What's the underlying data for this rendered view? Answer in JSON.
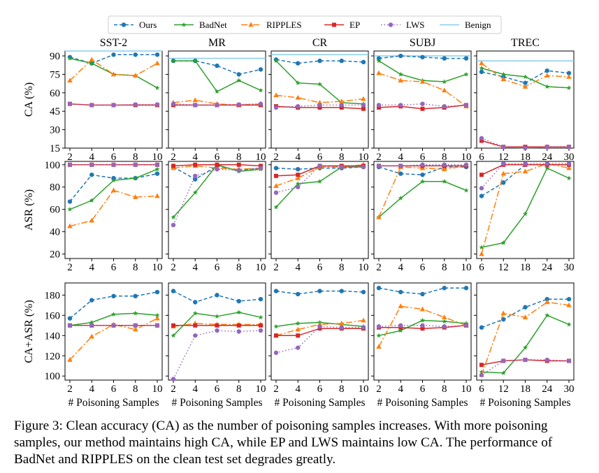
{
  "legend": {
    "items": [
      {
        "name": "Ours",
        "color": "#1f77b4",
        "dash": "5,3",
        "marker": "circle"
      },
      {
        "name": "BadNet",
        "color": "#2ca02c",
        "dash": "",
        "marker": "star"
      },
      {
        "name": "RIPPLES",
        "color": "#ff7f0e",
        "dash": "9,3,2,3",
        "marker": "triangle"
      },
      {
        "name": "EP",
        "color": "#d62728",
        "dash": "",
        "marker": "square"
      },
      {
        "name": "LWS",
        "color": "#9467bd",
        "dash": "1.5,3",
        "marker": "circle"
      },
      {
        "name": "Benign",
        "color": "#87ceeb",
        "dash": "",
        "marker": "none"
      }
    ]
  },
  "caption": "Figure 3: Clean accuracy (CA) as the number of poisoning samples increases. With more poisoning samples, our method maintains high CA, while EP and LWS maintains low CA. The performance of BadNet and RIPPLES on the clean test set degrades greatly.",
  "chart_data": {
    "type": "line",
    "columns": [
      "SST-2",
      "MR",
      "CR",
      "SUBJ",
      "TREC"
    ],
    "x_by_column": [
      [
        2,
        4,
        6,
        8,
        10
      ],
      [
        2,
        4,
        6,
        8,
        10
      ],
      [
        2,
        4,
        6,
        8,
        10
      ],
      [
        2,
        4,
        6,
        8,
        10
      ],
      [
        6,
        12,
        18,
        24,
        30
      ]
    ],
    "xlabel": "# Poisoning Samples",
    "rows": [
      {
        "metric": "CA",
        "ylabel": "CA (%)",
        "ylim": [
          15,
          94
        ],
        "yticks": [
          15,
          30,
          45,
          60,
          75,
          90
        ],
        "panels": [
          {
            "benign": 94,
            "series": {
              "Ours": [
                89,
                84,
                91,
                91,
                91
              ],
              "BadNet": [
                88,
                84,
                75,
                74,
                64
              ],
              "RIPPLES": [
                70,
                87,
                75,
                74,
                84
              ],
              "EP": [
                51,
                50,
                50,
                50,
                50
              ],
              "LWS": [
                51,
                50,
                50,
                50.5,
                50.5
              ]
            }
          },
          {
            "benign": 88,
            "series": {
              "Ours": [
                86,
                86,
                82,
                75,
                79
              ],
              "BadNet": [
                86,
                86,
                61,
                70,
                62
              ],
              "RIPPLES": [
                52,
                54,
                51,
                50,
                51
              ],
              "EP": [
                50,
                50,
                50,
                50,
                50
              ],
              "LWS": [
                51,
                50,
                50,
                50.5,
                51
              ]
            }
          },
          {
            "benign": 91,
            "series": {
              "Ours": [
                87,
                84,
                86,
                86,
                85
              ],
              "BadNet": [
                86,
                68,
                67,
                52,
                51
              ],
              "RIPPLES": [
                58,
                56,
                52,
                53,
                55
              ],
              "EP": [
                49,
                48,
                48,
                48,
                47
              ],
              "LWS": [
                48,
                49,
                50,
                50,
                50
              ]
            }
          },
          {
            "benign": 90,
            "series": {
              "Ours": [
                88,
                90,
                89,
                88,
                88
              ],
              "BadNet": [
                86,
                75,
                70,
                69,
                75
              ],
              "RIPPLES": [
                76,
                70,
                69,
                62,
                49
              ],
              "EP": [
                48,
                49,
                47,
                48,
                50
              ],
              "LWS": [
                50,
                50,
                51,
                49,
                50
              ]
            }
          },
          {
            "benign": 86,
            "series": {
              "Ours": [
                77,
                73,
                68,
                78,
                76
              ],
              "BadNet": [
                80,
                75,
                73,
                65,
                64
              ],
              "RIPPLES": [
                84,
                71,
                65,
                74,
                73
              ],
              "EP": [
                21,
                16,
                16,
                16,
                16
              ],
              "LWS": [
                23,
                16,
                15,
                16,
                16
              ]
            }
          }
        ]
      },
      {
        "metric": "ASR",
        "ylabel": "ASR (%)",
        "ylim": [
          16,
          103
        ],
        "yticks": [
          20,
          40,
          60,
          80,
          100
        ],
        "panels": [
          {
            "series": {
              "Ours": [
                67,
                91,
                88,
                88,
                92
              ],
              "BadNet": [
                60,
                68,
                86,
                88,
                96
              ],
              "RIPPLES": [
                45,
                50,
                77,
                71,
                72
              ],
              "EP": [
                100,
                100,
                100,
                100,
                100
              ],
              "LWS": [
                100,
                100,
                100,
                100,
                100
              ]
            }
          },
          {
            "series": {
              "Ours": [
                98,
                87,
                99,
                95,
                97
              ],
              "BadNet": [
                53,
                75,
                100,
                94,
                96
              ],
              "RIPPLES": [
                97,
                99,
                97,
                96,
                97
              ],
              "EP": [
                99,
                100,
                100,
                100,
                99
              ],
              "LWS": [
                46,
                90,
                96,
                95,
                97
              ]
            }
          },
          {
            "series": {
              "Ours": [
                97,
                96,
                97,
                97,
                98
              ],
              "BadNet": [
                62,
                83,
                85,
                98,
                98
              ],
              "RIPPLES": [
                81,
                88,
                98,
                98,
                100
              ],
              "EP": [
                90,
                91,
                99,
                99,
                99
              ],
              "LWS": [
                75,
                80,
                99,
                98,
                98
              ]
            }
          },
          {
            "series": {
              "Ours": [
                98,
                92,
                91,
                98,
                98
              ],
              "BadNet": [
                53,
                70,
                85,
                85,
                77
              ],
              "RIPPLES": [
                53,
                98,
                97,
                96,
                99
              ],
              "EP": [
                99,
                99,
                99,
                99,
                99
              ],
              "LWS": [
                99,
                99,
                100,
                100,
                100
              ]
            }
          },
          {
            "series": {
              "Ours": [
                72,
                84,
                100,
                100,
                100
              ],
              "BadNet": [
                26,
                30,
                56,
                97,
                88
              ],
              "RIPPLES": [
                20,
                92,
                94,
                101,
                97
              ],
              "EP": [
                91,
                100,
                100,
                100,
                100
              ],
              "LWS": [
                79,
                101,
                101,
                101,
                101
              ]
            }
          }
        ]
      },
      {
        "metric": "CA+ASR",
        "ylabel": "CA+ASR (%)",
        "ylim": [
          96,
          192
        ],
        "yticks": [
          100,
          120,
          140,
          160,
          180
        ],
        "panels": [
          {
            "series": {
              "Ours": [
                157,
                175,
                179,
                179,
                183
              ],
              "BadNet": [
                150,
                153,
                161,
                162,
                160
              ],
              "RIPPLES": [
                116,
                139,
                151,
                146,
                157
              ],
              "EP": [
                150,
                150,
                150,
                150,
                150
              ],
              "LWS": [
                150,
                150,
                150,
                150,
                150
              ]
            }
          },
          {
            "series": {
              "Ours": [
                184,
                173,
                180,
                174,
                176
              ],
              "BadNet": [
                140,
                162,
                159,
                163,
                158
              ],
              "RIPPLES": [
                149,
                152,
                151,
                151,
                151
              ],
              "EP": [
                150,
                150,
                150,
                150,
                150
              ],
              "LWS": [
                97,
                140,
                145,
                144,
                145
              ]
            }
          },
          {
            "series": {
              "Ours": [
                184,
                181,
                184,
                184,
                183
              ],
              "BadNet": [
                149,
                152,
                153,
                151,
                149
              ],
              "RIPPLES": [
                140,
                146,
                151,
                152,
                155
              ],
              "EP": [
                140,
                140,
                147,
                147,
                147
              ],
              "LWS": [
                123,
                128,
                149,
                148,
                148
              ]
            }
          },
          {
            "series": {
              "Ours": [
                187,
                183,
                181,
                187,
                187
              ],
              "BadNet": [
                140,
                145,
                155,
                154,
                152
              ],
              "RIPPLES": [
                129,
                169,
                166,
                158,
                150
              ],
              "EP": [
                148,
                148,
                147,
                148,
                150
              ],
              "LWS": [
                149,
                150,
                150,
                149,
                150
              ]
            }
          },
          {
            "series": {
              "Ours": [
                148,
                156,
                168,
                176,
                176
              ],
              "BadNet": [
                104,
                103,
                128,
                160,
                151
              ],
              "RIPPLES": [
                101,
                162,
                158,
                173,
                170
              ],
              "EP": [
                111,
                115,
                116,
                115,
                115
              ],
              "LWS": [
                101,
                115,
                116,
                116,
                115
              ]
            }
          }
        ]
      }
    ]
  }
}
